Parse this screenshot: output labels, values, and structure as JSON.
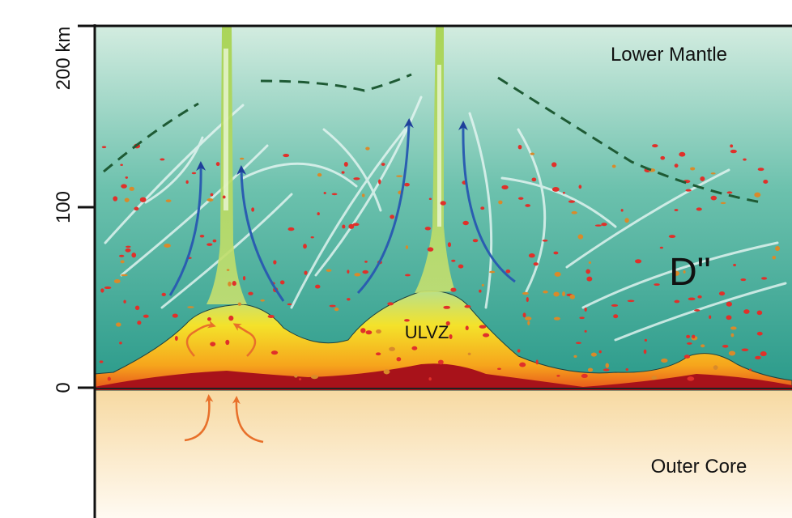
{
  "axis": {
    "ticks": [
      "200 km",
      "100",
      "0"
    ]
  },
  "labels": {
    "lower_mantle": "Lower Mantle",
    "d_double_prime": "D\"",
    "ulvz": "ULVZ",
    "outer_core": "Outer Core"
  }
}
